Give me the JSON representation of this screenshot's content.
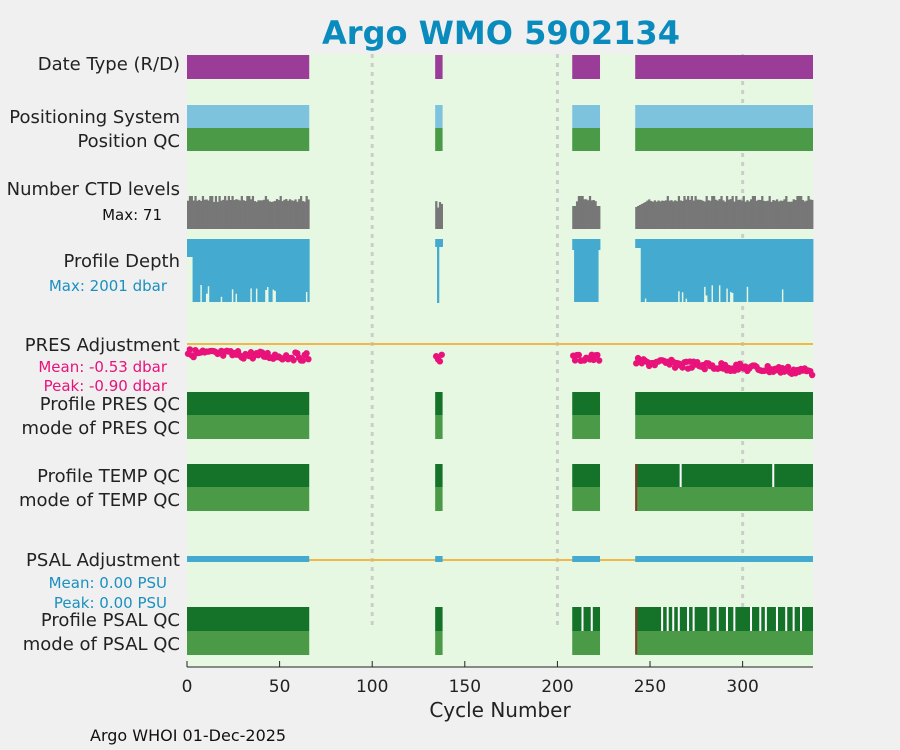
{
  "title": "Argo WMO 5902134",
  "footer": "Argo WHOI 01-Dec-2025",
  "colors": {
    "background": "#e6f8e1",
    "title": "#0a8bbd",
    "data_type": "#9b3d98",
    "positioning_system": "#7ec3de",
    "qc_good": "#4a9a48",
    "qc_profile": "#147229",
    "ctd_levels": "#777777",
    "profile_depth": "#44aad0",
    "pres_adjustment": "#e8127a",
    "psal_adjustment": "#44aad0",
    "zero_line": "#f0b84b",
    "gridline": "#cccccc",
    "qc_bad": "#8a3a2a"
  },
  "labels": {
    "data_type": "Date Type (R/D)",
    "positioning_system": "Positioning System",
    "position_qc": "Position QC",
    "ctd_levels": "Number CTD levels",
    "ctd_max": "Max: 71",
    "profile_depth": "Profile Depth",
    "depth_max": "Max: 2001 dbar",
    "pres_adjustment": "PRES Adjustment",
    "pres_mean": "Mean: -0.53 dbar",
    "pres_peak": "Peak: -0.90 dbar",
    "profile_pres_qc": "Profile PRES QC",
    "mode_pres_qc": "mode of PRES QC",
    "profile_temp_qc": "Profile TEMP QC",
    "mode_temp_qc": "mode of TEMP QC",
    "psal_adjustment": "PSAL Adjustment",
    "psal_mean": "Mean: 0.00 PSU",
    "psal_peak": "Peak: 0.00 PSU",
    "profile_psal_qc": "Profile PSAL QC",
    "mode_psal_qc": "mode of PSAL QC"
  },
  "chart_data": {
    "type": "timeline",
    "title": "Argo WMO 5902134",
    "xlabel": "Cycle Number",
    "xlim": [
      0,
      338
    ],
    "xticks": [
      0,
      50,
      100,
      150,
      200,
      250,
      300
    ],
    "gridlines_x": [
      100,
      200,
      300
    ],
    "data_segments": [
      [
        0,
        66
      ],
      [
        134,
        138
      ],
      [
        208,
        223
      ],
      [
        242,
        338
      ]
    ],
    "max_ctd_levels": 71,
    "max_profile_depth_dbar": 2001,
    "pres_adjustment_mean_dbar": -0.53,
    "pres_adjustment_peak_dbar": -0.9,
    "psal_adjustment_mean_psu": 0.0,
    "psal_adjustment_peak_psu": 0.0,
    "temp_qc_bad_cycles": [
      266,
      316
    ],
    "psal_qc_bad_cycles": [
      213,
      218,
      256,
      259,
      262,
      265,
      270,
      273,
      281,
      286,
      291,
      295,
      304,
      309,
      312,
      318,
      323,
      327,
      331
    ]
  }
}
